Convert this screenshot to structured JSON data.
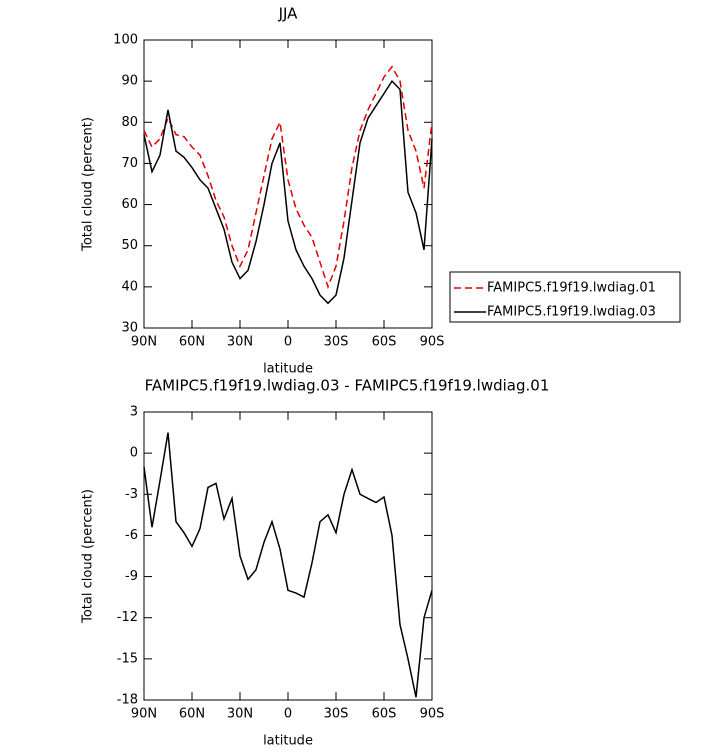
{
  "chart_data": [
    {
      "type": "line",
      "title": "JJA",
      "xlabel": "latitude",
      "ylabel": "Total cloud (percent)",
      "x": [
        90,
        85,
        80,
        75,
        70,
        65,
        60,
        55,
        50,
        45,
        40,
        35,
        30,
        25,
        20,
        15,
        10,
        5,
        0,
        -5,
        -10,
        -15,
        -20,
        -25,
        -30,
        -35,
        -40,
        -45,
        -50,
        -55,
        -60,
        -65,
        -70,
        -75,
        -80,
        -85,
        -90
      ],
      "series": [
        {
          "name": "FAMIPC5.f19f19.lwdiag.01",
          "color": "#e00000",
          "line_style": "dashed",
          "values": [
            78,
            74,
            76,
            81,
            77,
            76.5,
            74,
            72,
            67,
            61,
            57,
            50,
            45,
            49,
            58,
            67,
            76,
            80,
            66,
            59,
            55,
            52,
            46,
            40,
            45,
            56,
            69,
            78,
            83,
            87,
            91,
            93.5,
            90,
            78,
            73,
            64,
            80
          ]
        },
        {
          "name": "FAMIPC5.f19f19.lwdiag.03",
          "color": "#000000",
          "line_style": "solid",
          "values": [
            77,
            68,
            72,
            83,
            73,
            71.5,
            69,
            66,
            64,
            59,
            54,
            46,
            42,
            44,
            51,
            60,
            70,
            75,
            56,
            49,
            45,
            42,
            38,
            36,
            38,
            47,
            61,
            75,
            81,
            84,
            87,
            90,
            88,
            63,
            58,
            49,
            76
          ]
        }
      ],
      "xlim": [
        90,
        -90
      ],
      "xticks": [
        {
          "value": 90,
          "label": "90N"
        },
        {
          "value": 60,
          "label": "60N"
        },
        {
          "value": 30,
          "label": "30N"
        },
        0,
        {
          "value": -30,
          "label": "30S"
        },
        {
          "value": -60,
          "label": "60S"
        },
        {
          "value": -90,
          "label": "90S"
        }
      ],
      "ylim": [
        30,
        100
      ],
      "yticks": [
        30,
        40,
        50,
        60,
        70,
        80,
        90,
        100
      ]
    },
    {
      "type": "line",
      "title": "FAMIPC5.f19f19.lwdiag.03 - FAMIPC5.f19f19.lwdiag.01",
      "xlabel": "latitude",
      "ylabel": "Total cloud (percent)",
      "x": [
        90,
        85,
        80,
        75,
        70,
        65,
        60,
        55,
        50,
        45,
        40,
        35,
        30,
        25,
        20,
        15,
        10,
        5,
        0,
        -5,
        -10,
        -15,
        -20,
        -25,
        -30,
        -35,
        -40,
        -45,
        -50,
        -55,
        -60,
        -65,
        -70,
        -75,
        -80,
        -85,
        -90
      ],
      "values": [
        -1,
        -5.4,
        -2,
        1.5,
        -5,
        -5.8,
        -6.8,
        -5.5,
        -2.5,
        -2.2,
        -4.8,
        -3.3,
        -7.5,
        -9.2,
        -8.5,
        -6.5,
        -5,
        -7,
        -10,
        -10.2,
        -10.5,
        -8,
        -5,
        -4.5,
        -5.8,
        -3,
        -1.2,
        -3,
        -3.3,
        -3.6,
        -3.2,
        -6,
        -12.5,
        -15,
        -17.8,
        -12,
        -10
      ],
      "color": "#000000",
      "xlim": [
        90,
        -90
      ],
      "xticks": [
        {
          "value": 90,
          "label": "90N"
        },
        {
          "value": 60,
          "label": "60N"
        },
        {
          "value": 30,
          "label": "30N"
        },
        0,
        {
          "value": -30,
          "label": "30S"
        },
        {
          "value": -60,
          "label": "60S"
        },
        {
          "value": -90,
          "label": "90S"
        }
      ],
      "ylim": [
        -18,
        3
      ],
      "yticks": [
        3,
        0,
        -3,
        -6,
        -9,
        -12,
        -15,
        -18
      ]
    }
  ]
}
